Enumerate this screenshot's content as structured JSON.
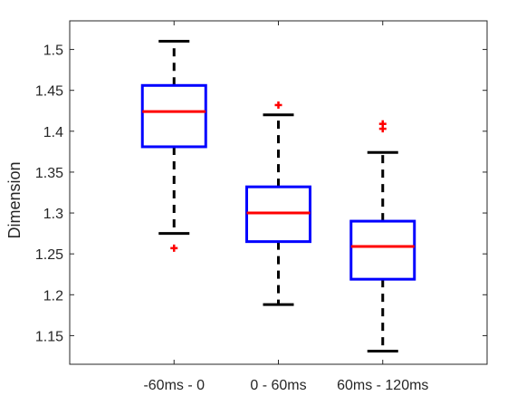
{
  "chart_data": {
    "type": "box",
    "title": "",
    "xlabel": "",
    "ylabel": "Dimension",
    "ylim": [
      1.115,
      1.535
    ],
    "yticks": [
      1.15,
      1.2,
      1.25,
      1.3,
      1.35,
      1.4,
      1.45,
      1.5
    ],
    "ytick_labels": [
      "1.15",
      "1.2",
      "1.25",
      "1.3",
      "1.35",
      "1.4",
      "1.45",
      "1.5"
    ],
    "categories": [
      "-60ms - 0",
      "0 - 60ms",
      "60ms - 120ms"
    ],
    "boxes": [
      {
        "category": "-60ms - 0",
        "whisker_low": 1.275,
        "q1": 1.381,
        "median": 1.424,
        "q3": 1.456,
        "whisker_high": 1.51,
        "outliers": [
          1.257
        ]
      },
      {
        "category": "0 - 60ms",
        "whisker_low": 1.188,
        "q1": 1.265,
        "median": 1.3,
        "q3": 1.332,
        "whisker_high": 1.42,
        "outliers": [
          1.432
        ]
      },
      {
        "category": "60ms - 120ms",
        "whisker_low": 1.131,
        "q1": 1.219,
        "median": 1.259,
        "q3": 1.29,
        "whisker_high": 1.374,
        "outliers": [
          1.403,
          1.409
        ]
      }
    ],
    "grid": false,
    "colors": {
      "box": "#0000ff",
      "median": "#ff0000",
      "whisker": "#000000",
      "outlier": "#ff0000"
    }
  }
}
